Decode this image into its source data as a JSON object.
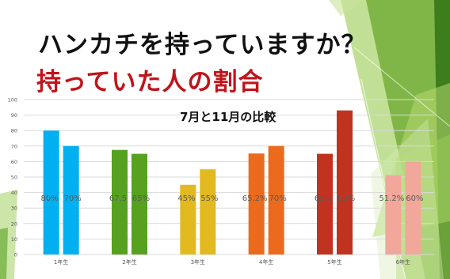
{
  "slide": {
    "title_line1": "ハンカチを持っていますか？",
    "title_line2": "持っていた人の割合",
    "title_line2_color": "#c0141b"
  },
  "chart_data": {
    "type": "bar",
    "title": "7月と11月の比較",
    "categories": [
      "1年生",
      "2年生",
      "3年生",
      "4年生",
      "5年生",
      "6年生"
    ],
    "series": [
      {
        "values": [
          80,
          67.5,
          45,
          65.2,
          65,
          51.2
        ],
        "labels": [
          "80%",
          "67.5",
          "45%",
          "65.2%",
          "65%",
          "51.2%"
        ]
      },
      {
        "values": [
          70,
          65,
          55,
          70,
          93,
          60
        ],
        "labels": [
          "70%",
          "65%",
          "55%",
          "70%",
          "93%",
          "60%"
        ]
      }
    ],
    "colors": [
      [
        "#00b0f0",
        "#00b0f0"
      ],
      [
        "#56a11f",
        "#56a11f"
      ],
      [
        "#e2b91f",
        "#e2b91f"
      ],
      [
        "#ec6a1c",
        "#ec6a1c"
      ],
      [
        "#c0331e",
        "#c0331e"
      ],
      [
        "#f2a79b",
        "#f2a79b"
      ]
    ],
    "yticks": [
      0,
      10,
      20,
      30,
      40,
      50,
      60,
      70,
      80,
      90,
      100
    ],
    "ylim": [
      0,
      100
    ],
    "grid": true
  }
}
